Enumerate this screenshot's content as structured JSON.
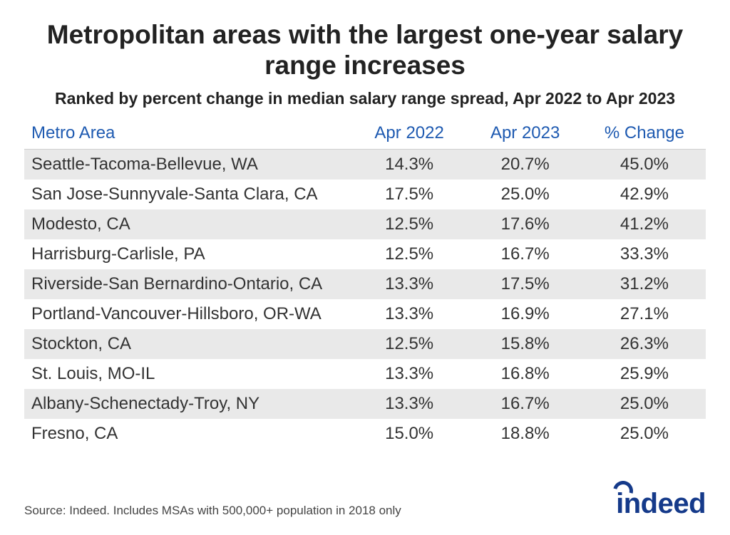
{
  "title": "Metropolitan areas with the largest one-year salary range increases",
  "subtitle": "Ranked by percent change in median salary range spread, Apr 2022 to Apr 2023",
  "table": {
    "columns": [
      "Metro Area",
      "Apr 2022",
      "Apr 2023",
      "% Change"
    ],
    "header_color": "#1e5ab1",
    "row_stripe_color": "#e9e9e9",
    "rows": [
      {
        "metro": "Seattle-Tacoma-Bellevue, WA",
        "apr2022": "14.3%",
        "apr2023": "20.7%",
        "change": "45.0%"
      },
      {
        "metro": "San Jose-Sunnyvale-Santa Clara, CA",
        "apr2022": "17.5%",
        "apr2023": "25.0%",
        "change": "42.9%"
      },
      {
        "metro": "Modesto, CA",
        "apr2022": "12.5%",
        "apr2023": "17.6%",
        "change": "41.2%"
      },
      {
        "metro": "Harrisburg-Carlisle, PA",
        "apr2022": "12.5%",
        "apr2023": "16.7%",
        "change": "33.3%"
      },
      {
        "metro": "Riverside-San Bernardino-Ontario, CA",
        "apr2022": "13.3%",
        "apr2023": "17.5%",
        "change": "31.2%"
      },
      {
        "metro": "Portland-Vancouver-Hillsboro, OR-WA",
        "apr2022": "13.3%",
        "apr2023": "16.9%",
        "change": "27.1%"
      },
      {
        "metro": "Stockton, CA",
        "apr2022": "12.5%",
        "apr2023": "15.8%",
        "change": "26.3%"
      },
      {
        "metro": "St. Louis, MO-IL",
        "apr2022": "13.3%",
        "apr2023": "16.8%",
        "change": "25.9%"
      },
      {
        "metro": "Albany-Schenectady-Troy, NY",
        "apr2022": "13.3%",
        "apr2023": "16.7%",
        "change": "25.0%"
      },
      {
        "metro": "Fresno, CA",
        "apr2022": "15.0%",
        "apr2023": "18.8%",
        "change": "25.0%"
      }
    ]
  },
  "source": "Source: Indeed. Includes MSAs with 500,000+ population in 2018 only",
  "logo_text": "indeed",
  "logo_color": "#153a8a",
  "background_color": "#ffffff",
  "title_fontsize": 37,
  "subtitle_fontsize": 23,
  "body_fontsize": 24,
  "source_fontsize": 17
}
